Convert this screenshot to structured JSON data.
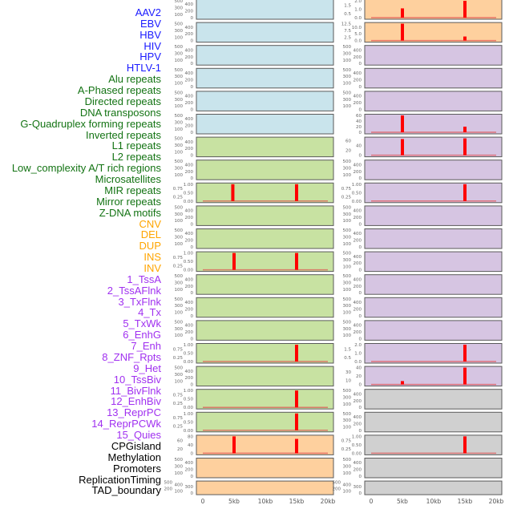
{
  "chart_data": {
    "type": "bar",
    "title": "",
    "xlabel": "",
    "ylabel": "",
    "xlim": [
      0,
      20000
    ],
    "x_tick_labels": [
      "0",
      "5kb",
      "10kb",
      "15kb",
      "20kb"
    ],
    "x_ticks": [
      0,
      5000,
      10000,
      15000,
      20000
    ],
    "group_colors": {
      "virus": {
        "label": "#1a1aff",
        "panel": "#c9e4ec"
      },
      "repeat": {
        "label": "#137313",
        "panel": "#c8e2a2"
      },
      "sv": {
        "label": "#ffa500",
        "panel": "#fed09e"
      },
      "chromatin": {
        "label": "#a030f0",
        "panel": "#d6c5e2"
      },
      "other": {
        "label": "#000000",
        "panel": "#d0d0d0"
      }
    },
    "spike_color": "#ff0000",
    "columns": [
      [
        {
          "name": "AAV2",
          "group": "virus",
          "ymax": 500,
          "ticks": [
            "0",
            "100",
            "200",
            "300",
            "400",
            "500"
          ],
          "bars": []
        },
        {
          "name": "EBV",
          "group": "virus",
          "ymax": 500,
          "ticks": [
            "0",
            "100",
            "200",
            "300",
            "400",
            "500"
          ],
          "bars": []
        },
        {
          "name": "HBV",
          "group": "virus",
          "ymax": 500,
          "ticks": [
            "0",
            "100",
            "200",
            "300",
            "400",
            "500"
          ],
          "bars": []
        },
        {
          "name": "HIV",
          "group": "virus",
          "ymax": 500,
          "ticks": [
            "0",
            "100",
            "200",
            "300",
            "400",
            "500"
          ],
          "bars": []
        },
        {
          "name": "HPV",
          "group": "virus",
          "ymax": 500,
          "ticks": [
            "0",
            "100",
            "200",
            "300",
            "400",
            "500"
          ],
          "bars": []
        },
        {
          "name": "HTLV-1",
          "group": "virus",
          "ymax": 500,
          "ticks": [
            "0",
            "100",
            "200",
            "300",
            "400",
            "500"
          ],
          "bars": []
        },
        {
          "name": "Alu repeats",
          "group": "repeat",
          "ymax": 500,
          "ticks": [
            "0",
            "100",
            "200",
            "300",
            "400",
            "500"
          ],
          "bars": []
        },
        {
          "name": "A-Phased repeats",
          "group": "repeat",
          "ymax": 500,
          "ticks": [
            "0",
            "100",
            "200",
            "300",
            "400",
            "500"
          ],
          "bars": []
        },
        {
          "name": "Directed repeats",
          "group": "repeat",
          "ymax": 1,
          "ticks": [
            "0.00",
            "0.25",
            "0.50",
            "0.75",
            "1.00"
          ],
          "bars": [
            {
              "x": 4800,
              "y": 1
            },
            {
              "x": 15000,
              "y": 1
            }
          ]
        },
        {
          "name": "DNA transposons",
          "group": "repeat",
          "ymax": 500,
          "ticks": [
            "0",
            "100",
            "200",
            "300",
            "400",
            "500"
          ],
          "bars": []
        },
        {
          "name": "G-Quadruplex forming repeats",
          "group": "repeat",
          "ymax": 500,
          "ticks": [
            "0",
            "100",
            "200",
            "300",
            "400",
            "500"
          ],
          "bars": []
        },
        {
          "name": "Inverted repeats",
          "group": "repeat",
          "ymax": 1,
          "ticks": [
            "0.00",
            "0.25",
            "0.50",
            "0.75",
            "1.00"
          ],
          "bars": [
            {
              "x": 5000,
              "y": 1
            },
            {
              "x": 15000,
              "y": 1
            }
          ]
        },
        {
          "name": "L1 repeats",
          "group": "repeat",
          "ymax": 500,
          "ticks": [
            "0",
            "100",
            "200",
            "300",
            "400",
            "500"
          ],
          "bars": []
        },
        {
          "name": "L2 repeats",
          "group": "repeat",
          "ymax": 500,
          "ticks": [
            "0",
            "100",
            "200",
            "300",
            "400",
            "500"
          ],
          "bars": []
        },
        {
          "name": "Low_complexity A/T rich regions",
          "group": "repeat",
          "ymax": 500,
          "ticks": [
            "0",
            "100",
            "200",
            "300",
            "400",
            "500"
          ],
          "bars": []
        },
        {
          "name": "Microsatellites",
          "group": "repeat",
          "ymax": 1,
          "ticks": [
            "0.00",
            "0.25",
            "0.50",
            "0.75",
            "1.00"
          ],
          "bars": [
            {
              "x": 15000,
              "y": 1
            }
          ]
        },
        {
          "name": "MIR repeats",
          "group": "repeat",
          "ymax": 500,
          "ticks": [
            "0",
            "100",
            "200",
            "300",
            "400",
            "500"
          ],
          "bars": []
        },
        {
          "name": "Mirror repeats",
          "group": "repeat",
          "ymax": 1,
          "ticks": [
            "0.00",
            "0.25",
            "0.50",
            "0.75",
            "1.00"
          ],
          "bars": [
            {
              "x": 15000,
              "y": 1
            }
          ]
        },
        {
          "name": "Z-DNA motifs",
          "group": "repeat",
          "ymax": 1,
          "ticks": [
            "0.00",
            "0.25",
            "0.50",
            "0.75",
            "1.00"
          ],
          "bars": [
            {
              "x": 15000,
              "y": 1
            }
          ]
        },
        {
          "name": "CNV",
          "group": "sv",
          "ymax": 80,
          "ticks": [
            "0",
            "20",
            "40",
            "60",
            "80"
          ],
          "bars": [
            {
              "x": 5000,
              "y": 80
            },
            {
              "x": 15000,
              "y": 68
            }
          ]
        },
        {
          "name": "DEL",
          "group": "sv",
          "ymax": 500,
          "ticks": [
            "0",
            "100",
            "200",
            "300",
            "400",
            "500"
          ],
          "bars": []
        },
        {
          "name": "DUP",
          "group": "sv",
          "ymax": 500,
          "ticks": [
            "0",
            "100",
            "200",
            "300",
            "400",
            "500"
          ],
          "bars": []
        }
      ],
      [
        {
          "name": "INS",
          "group": "sv",
          "ymax": 2,
          "ticks": [
            "0.0",
            "0.5",
            "1.0",
            "1.5",
            "2.0"
          ],
          "bars": [
            {
              "x": 5000,
              "y": 1.1
            },
            {
              "x": 15000,
              "y": 2
            }
          ]
        },
        {
          "name": "INV",
          "group": "sv",
          "ymax": 12.5,
          "ticks": [
            "0.0",
            "2.5",
            "5.0",
            "7.5",
            "10.0",
            "12.5"
          ],
          "bars": [
            {
              "x": 5000,
              "y": 12.5
            },
            {
              "x": 15000,
              "y": 3
            }
          ]
        },
        {
          "name": "1_TssA",
          "group": "chromatin",
          "ymax": 500,
          "ticks": [
            "0",
            "100",
            "200",
            "300",
            "400",
            "500"
          ],
          "bars": []
        },
        {
          "name": "2_TssAFlnk",
          "group": "chromatin",
          "ymax": 500,
          "ticks": [
            "0",
            "100",
            "200",
            "300",
            "400",
            "500"
          ],
          "bars": []
        },
        {
          "name": "3_TxFlnk",
          "group": "chromatin",
          "ymax": 500,
          "ticks": [
            "0",
            "100",
            "200",
            "300",
            "400",
            "500"
          ],
          "bars": []
        },
        {
          "name": "4_Tx",
          "group": "chromatin",
          "ymax": 60,
          "ticks": [
            "0",
            "20",
            "40",
            "60"
          ],
          "bars": [
            {
              "x": 5000,
              "y": 60
            },
            {
              "x": 15000,
              "y": 20
            }
          ]
        },
        {
          "name": "5_TxWk",
          "group": "chromatin",
          "ymax": 70,
          "ticks": [
            "0",
            "20",
            "40",
            "60"
          ],
          "bars": [
            {
              "x": 5000,
              "y": 67
            },
            {
              "x": 15000,
              "y": 70
            }
          ]
        },
        {
          "name": "6_EnhG",
          "group": "chromatin",
          "ymax": 500,
          "ticks": [
            "0",
            "100",
            "200",
            "300",
            "400",
            "500"
          ],
          "bars": []
        },
        {
          "name": "7_Enh",
          "group": "chromatin",
          "ymax": 1,
          "ticks": [
            "0.00",
            "0.25",
            "0.50",
            "0.75",
            "1.00"
          ],
          "bars": [
            {
              "x": 15000,
              "y": 1
            }
          ]
        },
        {
          "name": "8_ZNF_Rpts",
          "group": "chromatin",
          "ymax": 500,
          "ticks": [
            "0",
            "100",
            "200",
            "300",
            "400",
            "500"
          ],
          "bars": []
        },
        {
          "name": "9_Het",
          "group": "chromatin",
          "ymax": 500,
          "ticks": [
            "0",
            "100",
            "200",
            "300",
            "400",
            "500"
          ],
          "bars": []
        },
        {
          "name": "10_TssBiv",
          "group": "chromatin",
          "ymax": 500,
          "ticks": [
            "0",
            "100",
            "200",
            "300",
            "400",
            "500"
          ],
          "bars": []
        },
        {
          "name": "11_BivFlnk",
          "group": "chromatin",
          "ymax": 500,
          "ticks": [
            "0",
            "100",
            "200",
            "300",
            "400",
            "500"
          ],
          "bars": []
        },
        {
          "name": "12_EnhBiv",
          "group": "chromatin",
          "ymax": 500,
          "ticks": [
            "0",
            "100",
            "200",
            "300",
            "400",
            "500"
          ],
          "bars": []
        },
        {
          "name": "13_ReprPC",
          "group": "chromatin",
          "ymax": 500,
          "ticks": [
            "0",
            "100",
            "200",
            "300",
            "400",
            "500"
          ],
          "bars": []
        },
        {
          "name": "14_ReprPCWk",
          "group": "chromatin",
          "ymax": 2,
          "ticks": [
            "0.0",
            "0.5",
            "1.0",
            "1.5",
            "2.0"
          ],
          "bars": [
            {
              "x": 15000,
              "y": 2
            }
          ]
        },
        {
          "name": "15_Quies",
          "group": "chromatin",
          "ymax": 40,
          "ticks": [
            "0",
            "10",
            "20",
            "30",
            "40"
          ],
          "bars": [
            {
              "x": 5000,
              "y": 8
            },
            {
              "x": 15000,
              "y": 40
            }
          ]
        },
        {
          "name": "CPGisland",
          "group": "other",
          "ymax": 500,
          "ticks": [
            "0",
            "100",
            "200",
            "300",
            "400",
            "500"
          ],
          "bars": []
        },
        {
          "name": "Methylation",
          "group": "other",
          "ymax": 500,
          "ticks": [
            "0",
            "100",
            "200",
            "300",
            "400",
            "500"
          ],
          "bars": []
        },
        {
          "name": "Promoters",
          "group": "other",
          "ymax": 1,
          "ticks": [
            "0.00",
            "0.25",
            "0.50",
            "0.75",
            "1.00"
          ],
          "bars": [
            {
              "x": 15000,
              "y": 1
            }
          ]
        },
        {
          "name": "ReplicationTiming",
          "group": "other",
          "ymax": 500,
          "ticks": [
            "0",
            "100",
            "200",
            "300",
            "400",
            "500"
          ],
          "bars": []
        },
        {
          "name": "TAD_boundary",
          "group": "other",
          "ymax": 500,
          "ticks": [
            "0",
            "100",
            "200",
            "300",
            "400",
            "500"
          ],
          "bars": []
        }
      ]
    ]
  }
}
